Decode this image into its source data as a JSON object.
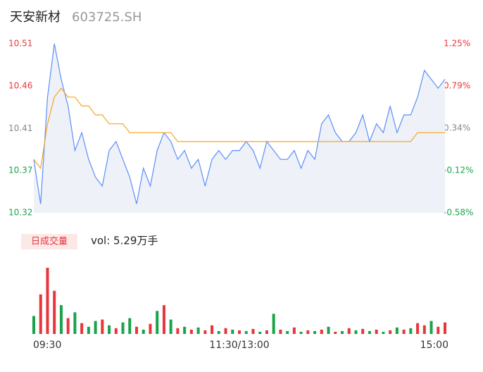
{
  "chart_data": {
    "type": "intraday",
    "title": "天安新材",
    "subtitle": "603725.SH",
    "xlim": [
      0,
      240
    ],
    "xticks": [
      {
        "value": 0,
        "label": "09:30"
      },
      {
        "value": 120,
        "label": "11:30/13:00"
      },
      {
        "value": 240,
        "label": "15:00"
      }
    ],
    "ylim": [
      10.32,
      10.51
    ],
    "yticks": [
      {
        "value": 10.32,
        "label": "10.32"
      },
      {
        "value": 10.3675,
        "label": "10.37"
      },
      {
        "value": 10.4145,
        "label": "10.41"
      },
      {
        "value": 10.4625,
        "label": "10.46"
      },
      {
        "value": 10.51,
        "label": "10.51"
      }
    ],
    "ytick_colors": [
      "#1aa34a",
      "#1aa34a",
      "#888888",
      "#e8353a",
      "#e8353a"
    ],
    "y2lim": [
      -0.58,
      1.25
    ],
    "y2ticks": [
      {
        "value": -0.58,
        "label": "-0.58%"
      },
      {
        "value": -0.1225,
        "label": "-0.12%"
      },
      {
        "value": 0.335,
        "label": "0.34%"
      },
      {
        "value": 0.7925,
        "label": "0.79%"
      },
      {
        "value": 1.25,
        "label": "1.25%"
      }
    ],
    "x": [
      0,
      4,
      8,
      12,
      16,
      20,
      24,
      28,
      32,
      36,
      40,
      44,
      48,
      52,
      56,
      60,
      64,
      68,
      72,
      76,
      80,
      84,
      88,
      92,
      96,
      100,
      104,
      108,
      112,
      116,
      120,
      124,
      128,
      132,
      136,
      140,
      144,
      148,
      152,
      156,
      160,
      164,
      168,
      172,
      176,
      180,
      184,
      188,
      192,
      196,
      200,
      204,
      208,
      212,
      216,
      220,
      224,
      228,
      232,
      236,
      240
    ],
    "series": [
      {
        "name": "price",
        "color": "#5b8ff9",
        "values": [
          10.38,
          10.33,
          10.45,
          10.51,
          10.47,
          10.44,
          10.39,
          10.41,
          10.38,
          10.36,
          10.35,
          10.39,
          10.4,
          10.38,
          10.36,
          10.33,
          10.37,
          10.35,
          10.39,
          10.41,
          10.4,
          10.38,
          10.39,
          10.37,
          10.38,
          10.35,
          10.38,
          10.39,
          10.38,
          10.39,
          10.39,
          10.4,
          10.39,
          10.37,
          10.4,
          10.39,
          10.38,
          10.38,
          10.39,
          10.37,
          10.39,
          10.38,
          10.42,
          10.43,
          10.41,
          10.4,
          10.4,
          10.41,
          10.43,
          10.4,
          10.42,
          10.41,
          10.44,
          10.41,
          10.43,
          10.43,
          10.45,
          10.48,
          10.47,
          10.46,
          10.47
        ]
      },
      {
        "name": "average",
        "color": "#f5a623",
        "values": [
          10.38,
          10.37,
          10.42,
          10.45,
          10.46,
          10.45,
          10.45,
          10.44,
          10.44,
          10.43,
          10.43,
          10.42,
          10.42,
          10.42,
          10.41,
          10.41,
          10.41,
          10.41,
          10.41,
          10.41,
          10.41,
          10.4,
          10.4,
          10.4,
          10.4,
          10.4,
          10.4,
          10.4,
          10.4,
          10.4,
          10.4,
          10.4,
          10.4,
          10.4,
          10.4,
          10.4,
          10.4,
          10.4,
          10.4,
          10.4,
          10.4,
          10.4,
          10.4,
          10.4,
          10.4,
          10.4,
          10.4,
          10.4,
          10.4,
          10.4,
          10.4,
          10.4,
          10.4,
          10.4,
          10.4,
          10.4,
          10.41,
          10.41,
          10.41,
          10.41,
          10.41
        ]
      }
    ],
    "volume_label": "日成交量",
    "volume_text": "vol: 5.29万手",
    "volume": [
      25,
      55,
      92,
      60,
      40,
      22,
      30,
      15,
      10,
      18,
      20,
      12,
      8,
      16,
      22,
      10,
      6,
      14,
      32,
      40,
      20,
      8,
      10,
      6,
      9,
      5,
      12,
      4,
      8,
      6,
      5,
      4,
      7,
      3,
      5,
      28,
      6,
      4,
      9,
      3,
      5,
      4,
      6,
      10,
      3,
      4,
      8,
      5,
      7,
      4,
      6,
      3,
      5,
      9,
      6,
      8,
      15,
      12,
      18,
      10,
      16
    ],
    "volume_colors": [
      "#1aa34a",
      "#e8353a",
      "#e8353a",
      "#e8353a",
      "#1aa34a",
      "#e8353a",
      "#1aa34a",
      "#e8353a",
      "#1aa34a",
      "#1aa34a",
      "#e8353a",
      "#1aa34a",
      "#e8353a",
      "#1aa34a",
      "#1aa34a",
      "#e8353a",
      "#1aa34a",
      "#e8353a",
      "#1aa34a",
      "#e8353a",
      "#1aa34a",
      "#e8353a",
      "#1aa34a",
      "#e8353a",
      "#1aa34a",
      "#e8353a",
      "#e8353a",
      "#1aa34a",
      "#e8353a",
      "#1aa34a",
      "#e8353a",
      "#1aa34a",
      "#e8353a",
      "#1aa34a",
      "#e8353a",
      "#1aa34a",
      "#e8353a",
      "#1aa34a",
      "#e8353a",
      "#1aa34a",
      "#e8353a",
      "#1aa34a",
      "#e8353a",
      "#1aa34a",
      "#e8353a",
      "#1aa34a",
      "#e8353a",
      "#1aa34a",
      "#e8353a",
      "#1aa34a",
      "#e8353a",
      "#1aa34a",
      "#e8353a",
      "#1aa34a",
      "#e8353a",
      "#1aa34a",
      "#e8353a",
      "#e8353a",
      "#1aa34a",
      "#e8353a",
      "#e8353a"
    ]
  }
}
